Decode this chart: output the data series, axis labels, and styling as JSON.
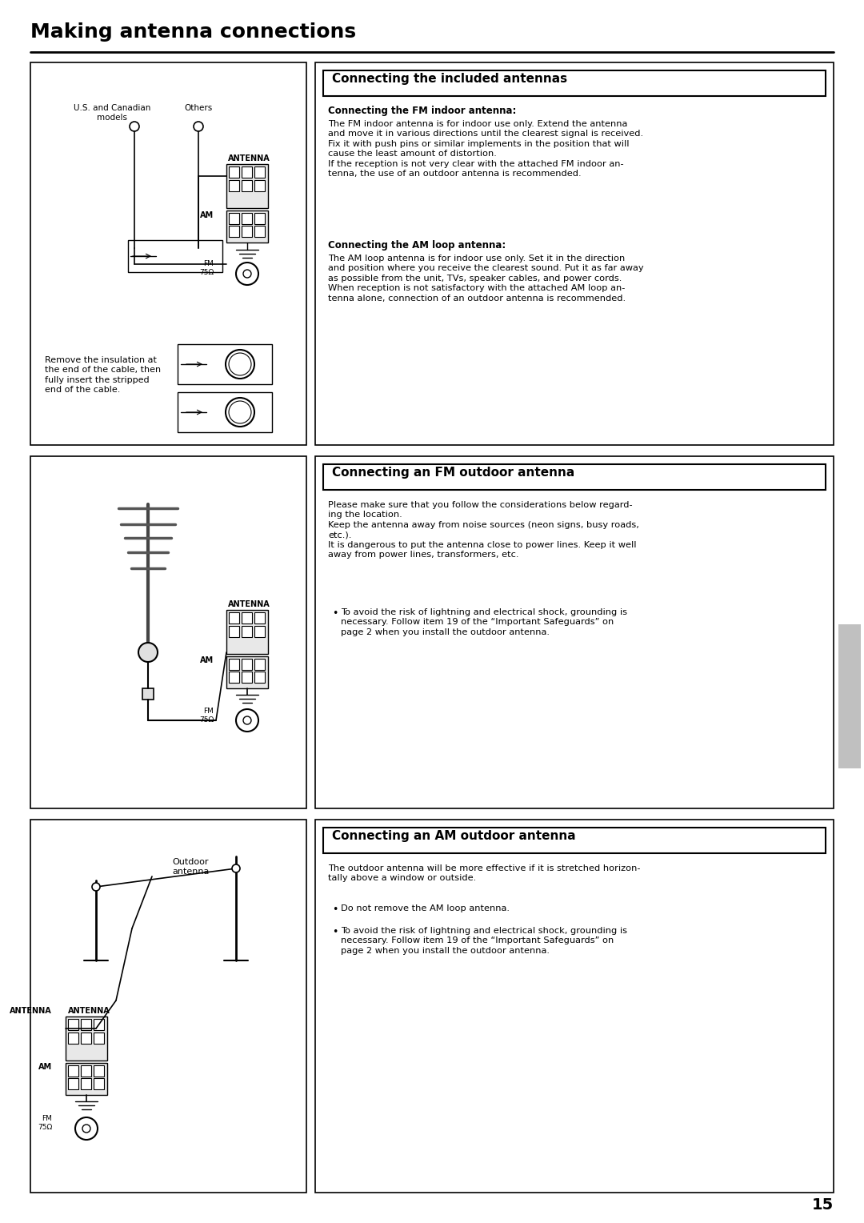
{
  "title": "Making antenna connections",
  "bg_color": "#ffffff",
  "page_number": "15",
  "section1_header": "Connecting the included antennas",
  "s1_sub1_title": "Connecting the FM indoor antenna:",
  "s1_sub1_body": "The FM indoor antenna is for indoor use only. Extend the antenna\nand move it in various directions until the clearest signal is received.\nFix it with push pins or similar implements in the position that will\ncause the least amount of distortion.\nIf the reception is not very clear with the attached FM indoor an-\ntenna, the use of an outdoor antenna is recommended.",
  "s1_sub2_title": "Connecting the AM loop antenna:",
  "s1_sub2_body": "The AM loop antenna is for indoor use only. Set it in the direction\nand position where you receive the clearest sound. Put it as far away\nas possible from the unit, TVs, speaker cables, and power cords.\nWhen reception is not satisfactory with the attached AM loop an-\ntenna alone, connection of an outdoor antenna is recommended.",
  "section2_header": "Connecting an FM outdoor antenna",
  "s2_body": "Please make sure that you follow the considerations below regard-\ning the location.\nKeep the antenna away from noise sources (neon signs, busy roads,\netc.).\nIt is dangerous to put the antenna close to power lines. Keep it well\naway from power lines, transformers, etc.",
  "s2_bullet1": "To avoid the risk of lightning and electrical shock, grounding is\nnecessary. Follow item 19 of the “Important Safeguards” on\npage 2 when you install the outdoor antenna.",
  "section3_header": "Connecting an AM outdoor antenna",
  "s3_body": "The outdoor antenna will be more effective if it is stretched horizon-\ntally above a window or outside.",
  "s3_bullet1": "Do not remove the AM loop antenna.",
  "s3_bullet2": "To avoid the risk of lightning and electrical shock, grounding is\nnecessary. Follow item 19 of the “Important Safeguards” on\npage 2 when you install the outdoor antenna.",
  "remove_insulation": "Remove the insulation at\nthe end of the cable, then\nfully insert the stripped\nend of the cable."
}
